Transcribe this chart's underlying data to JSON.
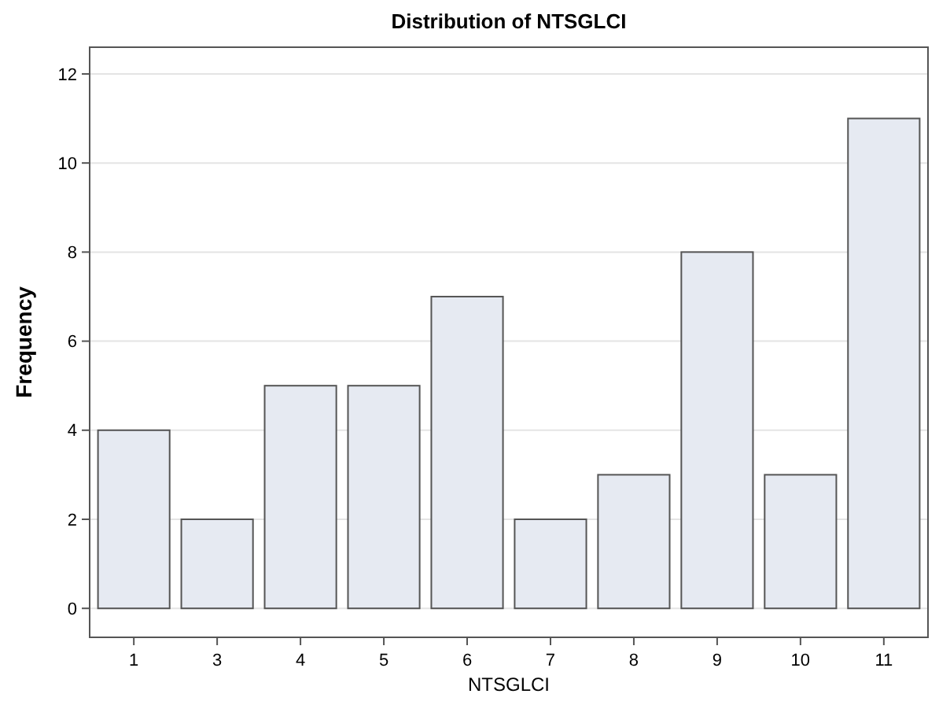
{
  "chart_data": {
    "type": "bar",
    "title": "Distribution of NTSGLCI",
    "xlabel": "NTSGLCI",
    "ylabel": "Frequency",
    "categories": [
      "1",
      "3",
      "4",
      "5",
      "6",
      "7",
      "8",
      "9",
      "10",
      "11"
    ],
    "values": [
      4,
      2,
      5,
      5,
      7,
      2,
      3,
      8,
      3,
      11
    ],
    "color": "#e6eaf2",
    "ylim": [
      -0.65,
      12.6
    ],
    "yticks": [
      0,
      2,
      4,
      6,
      8,
      10,
      12
    ],
    "grid": "y"
  }
}
